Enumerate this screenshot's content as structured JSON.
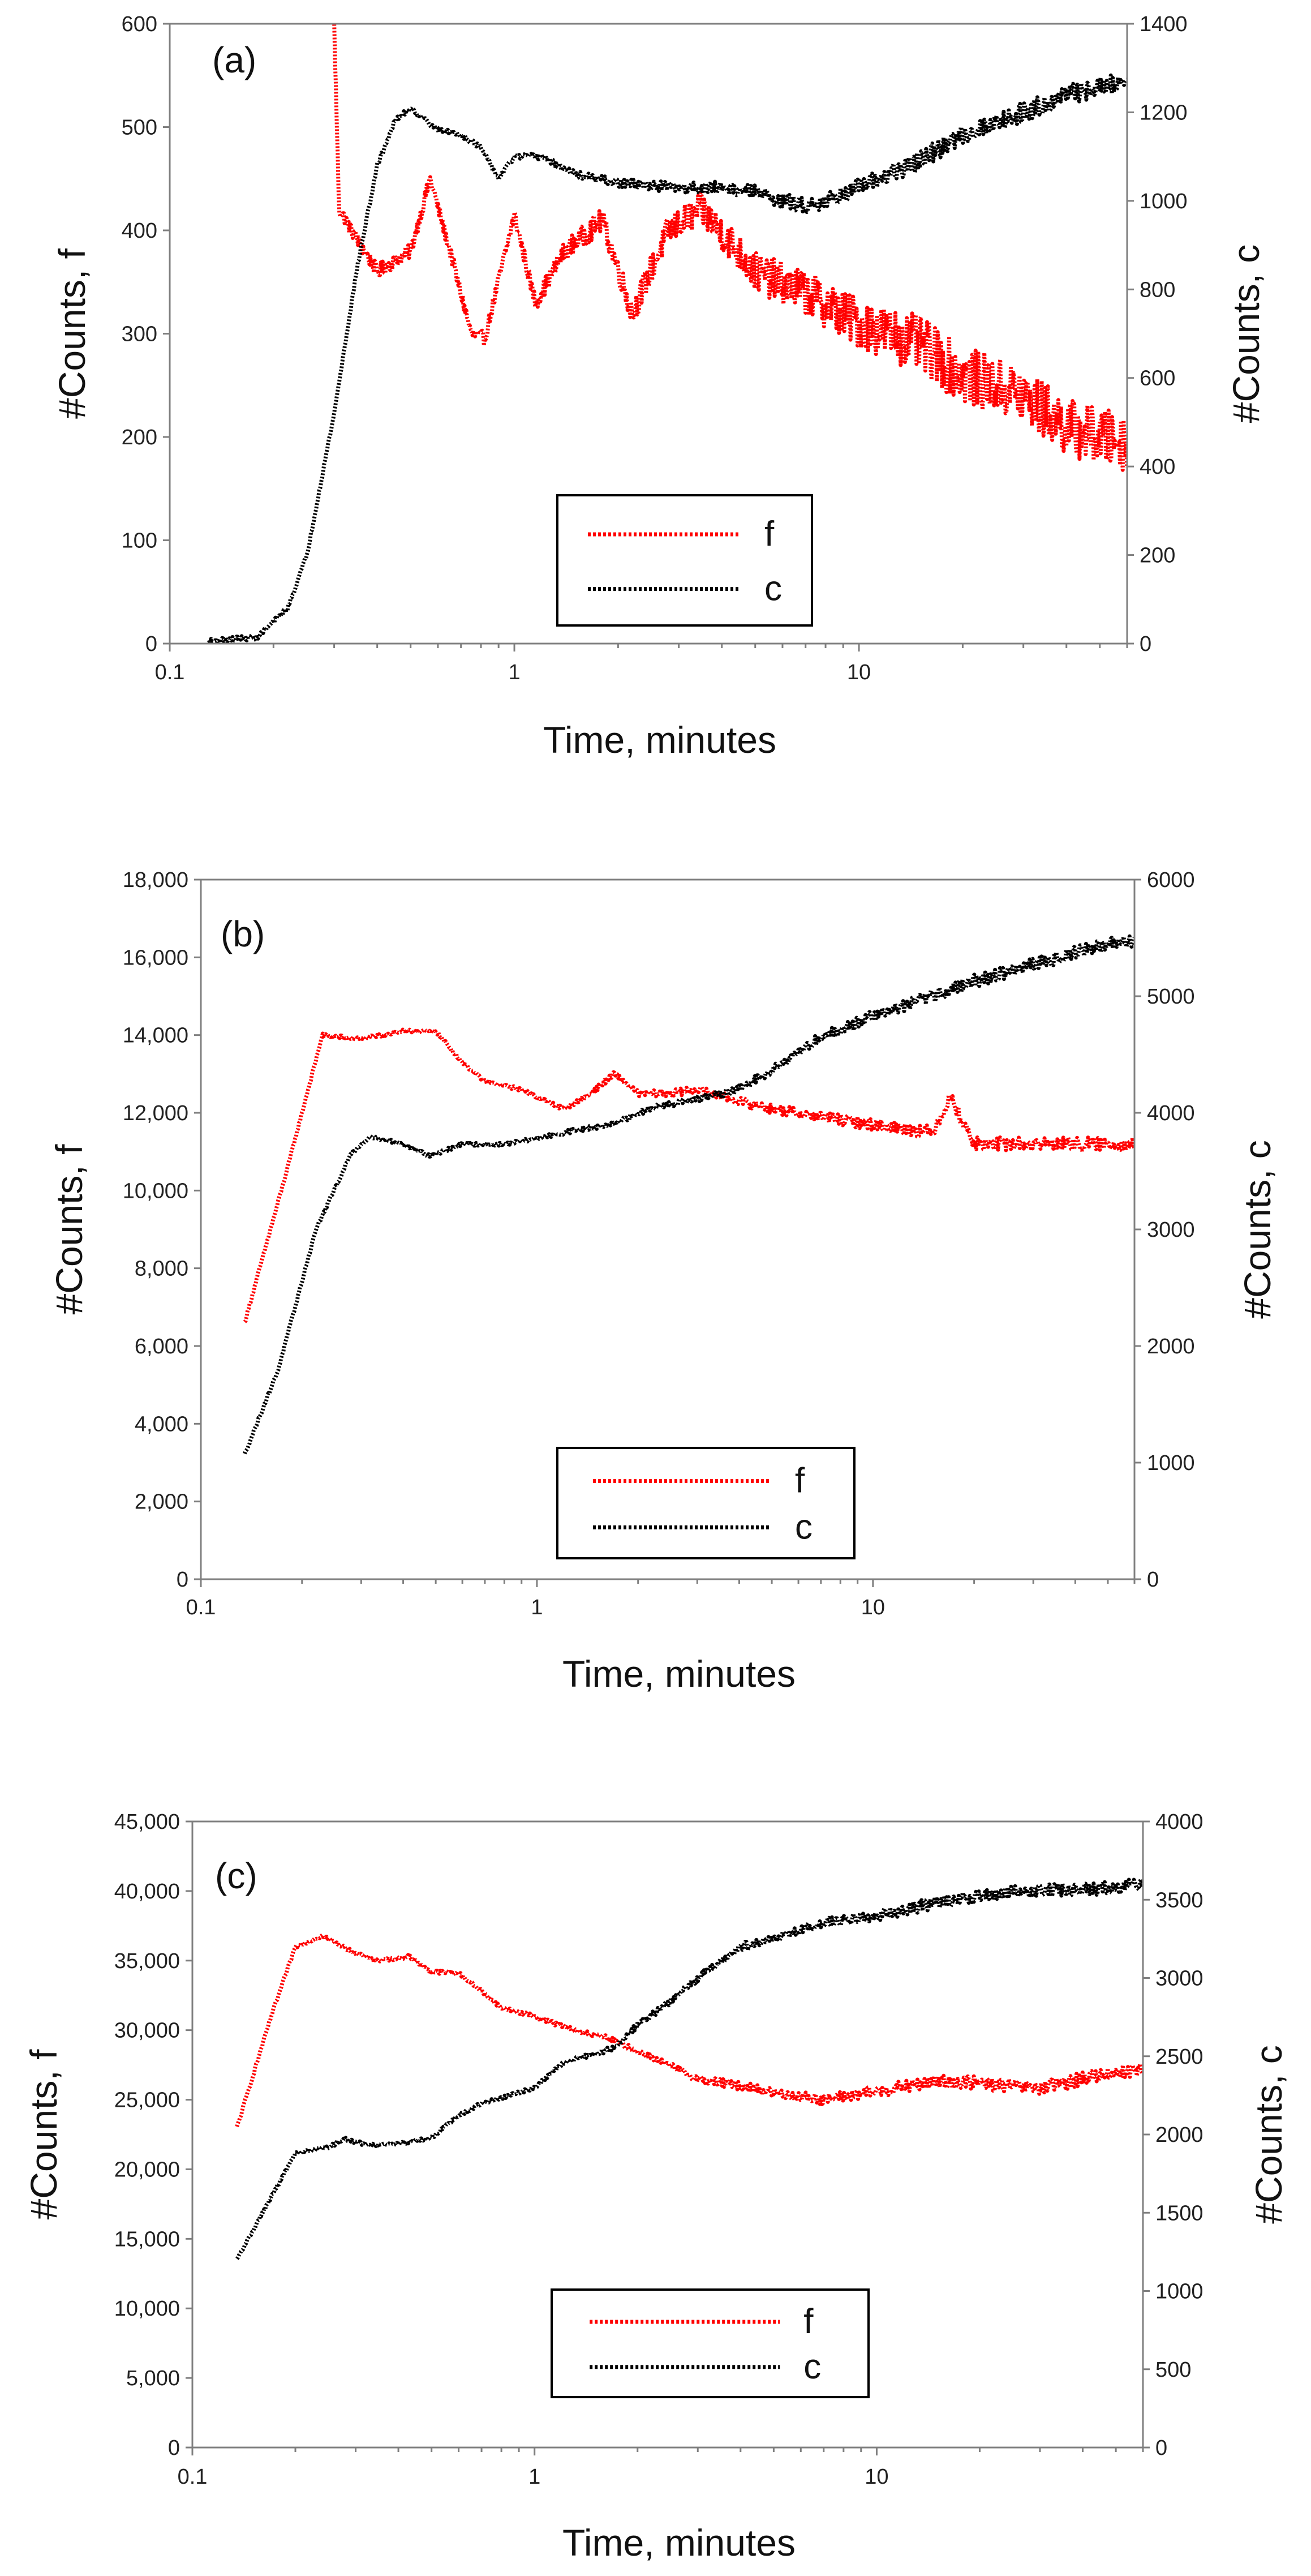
{
  "chart_data": [
    {
      "type": "line",
      "panel_label": "(a)",
      "xlabel": "Time, minutes",
      "ylabel_left": "#Counts, f",
      "ylabel_right": "#Counts, c",
      "xscale": "log",
      "xlim": [
        0.1,
        60
      ],
      "x_ticks": [
        0.1,
        1,
        10
      ],
      "x_tick_labels": [
        "0.1",
        "1",
        "10"
      ],
      "ylim_left": [
        0,
        600
      ],
      "y_left_ticks": [
        0,
        100,
        200,
        300,
        400,
        500,
        600
      ],
      "y_left_tick_labels": [
        "0",
        "100",
        "200",
        "300",
        "400",
        "500",
        "600"
      ],
      "ylim_right": [
        0,
        1400
      ],
      "y_right_ticks": [
        0,
        200,
        400,
        600,
        800,
        1000,
        1200,
        1400
      ],
      "y_right_tick_labels": [
        "0",
        "200",
        "400",
        "600",
        "800",
        "1000",
        "1200",
        "1400"
      ],
      "legend": {
        "position": "bottom-center",
        "entries": [
          "f",
          "c"
        ]
      },
      "series": [
        {
          "name": "f",
          "axis": "left",
          "color": "#ff0000",
          "style": "dotted",
          "x": [
            0.3,
            0.31,
            0.4,
            0.5,
            0.57,
            0.65,
            0.75,
            0.82,
            1.0,
            1.15,
            1.4,
            1.8,
            2.2,
            2.8,
            3.5,
            5,
            7,
            10,
            15,
            20,
            25,
            30,
            40,
            50,
            60
          ],
          "y": [
            600,
            420,
            360,
            380,
            450,
            380,
            300,
            295,
            415,
            330,
            380,
            410,
            320,
            400,
            420,
            360,
            340,
            310,
            290,
            260,
            250,
            240,
            210,
            200,
            195
          ],
          "noise": 28
        },
        {
          "name": "c",
          "axis": "right",
          "color": "#000000",
          "style": "dotted",
          "x": [
            0.13,
            0.18,
            0.22,
            0.25,
            0.3,
            0.35,
            0.4,
            0.45,
            0.5,
            0.6,
            0.7,
            0.8,
            0.9,
            1.0,
            1.2,
            1.5,
            2,
            3,
            4,
            5,
            6,
            7,
            8,
            10,
            15,
            20,
            30,
            40,
            60
          ],
          "y": [
            5,
            15,
            80,
            200,
            520,
            850,
            1080,
            1180,
            1210,
            1160,
            1150,
            1120,
            1050,
            1100,
            1100,
            1060,
            1040,
            1030,
            1030,
            1020,
            1000,
            990,
            1000,
            1030,
            1090,
            1150,
            1200,
            1240,
            1270
          ],
          "noise": 22
        }
      ]
    },
    {
      "type": "line",
      "panel_label": "(b)",
      "xlabel": "Time, minutes",
      "ylabel_left": "#Counts, f",
      "ylabel_right": "#Counts, c",
      "xscale": "log",
      "xlim": [
        0.1,
        60
      ],
      "x_ticks": [
        0.1,
        1,
        10
      ],
      "x_tick_labels": [
        "0.1",
        "1",
        "10"
      ],
      "ylim_left": [
        0,
        18000
      ],
      "y_left_ticks": [
        0,
        2000,
        4000,
        6000,
        8000,
        10000,
        12000,
        14000,
        16000,
        18000
      ],
      "y_left_tick_labels": [
        "0",
        "2,000",
        "4,000",
        "6,000",
        "8,000",
        "10,000",
        "12,000",
        "14,000",
        "16,000",
        "18,000"
      ],
      "ylim_right": [
        0,
        6000
      ],
      "y_right_ticks": [
        0,
        1000,
        2000,
        3000,
        4000,
        5000,
        6000
      ],
      "y_right_tick_labels": [
        "0",
        "1000",
        "2000",
        "3000",
        "4000",
        "5000",
        "6000"
      ],
      "legend": {
        "position": "bottom-center",
        "entries": [
          "f",
          "c"
        ]
      },
      "series": [
        {
          "name": "f",
          "axis": "left",
          "color": "#ff0000",
          "style": "dotted",
          "x": [
            0.135,
            0.18,
            0.23,
            0.3,
            0.4,
            0.5,
            0.6,
            0.7,
            0.9,
            1.2,
            1.4,
            1.7,
            2.0,
            2.5,
            3,
            4,
            5,
            7,
            10,
            15,
            17,
            20,
            30,
            45,
            60
          ],
          "y": [
            6600,
            10500,
            14000,
            13900,
            14100,
            14100,
            13300,
            12800,
            12600,
            12100,
            12400,
            13000,
            12500,
            12500,
            12600,
            12300,
            12100,
            11900,
            11700,
            11500,
            12400,
            11200,
            11200,
            11200,
            11200
          ],
          "noise": 170
        },
        {
          "name": "c",
          "axis": "right",
          "color": "#000000",
          "style": "dotted",
          "x": [
            0.135,
            0.17,
            0.22,
            0.28,
            0.32,
            0.4,
            0.48,
            0.6,
            0.8,
            1.0,
            1.3,
            1.7,
            2.2,
            3,
            4,
            5,
            7,
            10,
            15,
            20,
            30,
            45,
            60
          ],
          "y": [
            1070,
            1800,
            3000,
            3650,
            3800,
            3730,
            3630,
            3730,
            3730,
            3780,
            3850,
            3900,
            4050,
            4120,
            4200,
            4370,
            4650,
            4830,
            5000,
            5130,
            5270,
            5420,
            5480
          ],
          "noise": 55
        }
      ]
    },
    {
      "type": "line",
      "panel_label": "(c)",
      "xlabel": "Time, minutes",
      "ylabel_left": "#Counts, f",
      "ylabel_right": "#Counts, c",
      "xscale": "log",
      "xlim": [
        0.1,
        60
      ],
      "x_ticks": [
        0.1,
        1,
        10
      ],
      "x_tick_labels": [
        "0.1",
        "1",
        "10"
      ],
      "ylim_left": [
        0,
        45000
      ],
      "y_left_ticks": [
        0,
        5000,
        10000,
        15000,
        20000,
        25000,
        30000,
        35000,
        40000,
        45000
      ],
      "y_left_tick_labels": [
        "0",
        "5,000",
        "10,000",
        "15,000",
        "20,000",
        "25,000",
        "30,000",
        "35,000",
        "40,000",
        "45,000"
      ],
      "ylim_right": [
        0,
        4000
      ],
      "y_right_ticks": [
        0,
        500,
        1000,
        1500,
        2000,
        2500,
        3000,
        3500,
        4000
      ],
      "y_right_tick_labels": [
        "0",
        "500",
        "1000",
        "1500",
        "2000",
        "2500",
        "3000",
        "3500",
        "4000"
      ],
      "legend": {
        "position": "bottom-center",
        "entries": [
          "f",
          "c"
        ]
      },
      "series": [
        {
          "name": "f",
          "axis": "left",
          "color": "#ff0000",
          "style": "dotted",
          "x": [
            0.135,
            0.17,
            0.2,
            0.24,
            0.3,
            0.35,
            0.43,
            0.5,
            0.6,
            0.7,
            0.8,
            1.0,
            1.3,
            1.6,
            2.0,
            3,
            4,
            5,
            7,
            10,
            15,
            20,
            30,
            45,
            60
          ],
          "y": [
            23000,
            31000,
            36000,
            36800,
            35500,
            35000,
            35300,
            34200,
            34100,
            32800,
            31600,
            31000,
            30000,
            29500,
            28500,
            26500,
            26000,
            25500,
            25000,
            25600,
            26300,
            26200,
            25800,
            26800,
            27200
          ],
          "noise": 480
        },
        {
          "name": "c",
          "axis": "right",
          "color": "#000000",
          "style": "dotted",
          "x": [
            0.135,
            0.17,
            0.2,
            0.25,
            0.28,
            0.33,
            0.4,
            0.5,
            0.6,
            0.7,
            0.85,
            1.0,
            1.2,
            1.4,
            1.7,
            2.0,
            2.5,
            3,
            4,
            5,
            7,
            10,
            15,
            20,
            30,
            45,
            60
          ],
          "y": [
            1200,
            1600,
            1880,
            1920,
            1970,
            1930,
            1940,
            1980,
            2120,
            2200,
            2250,
            2300,
            2450,
            2500,
            2550,
            2700,
            2850,
            3000,
            3200,
            3250,
            3350,
            3400,
            3480,
            3530,
            3560,
            3570,
            3600
          ],
          "noise": 40
        }
      ]
    }
  ]
}
